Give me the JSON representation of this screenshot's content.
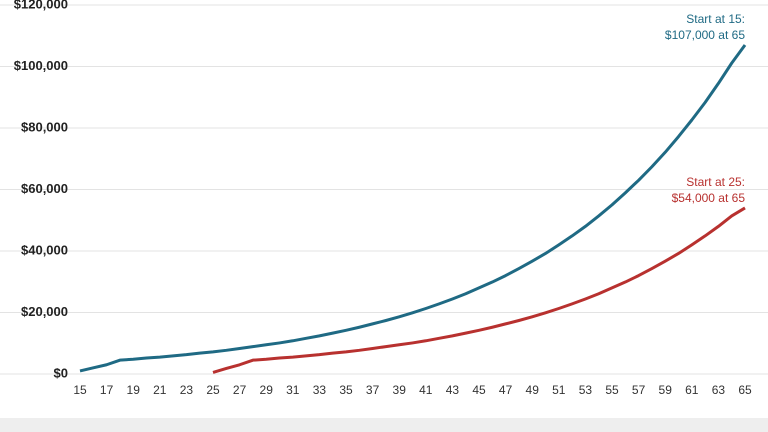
{
  "chart_data": {
    "type": "line",
    "x": [
      15,
      16,
      17,
      18,
      19,
      20,
      21,
      22,
      23,
      24,
      25,
      26,
      27,
      28,
      29,
      30,
      31,
      32,
      33,
      34,
      35,
      36,
      37,
      38,
      39,
      40,
      41,
      42,
      43,
      44,
      45,
      46,
      47,
      48,
      49,
      50,
      51,
      52,
      53,
      54,
      55,
      56,
      57,
      58,
      59,
      60,
      61,
      62,
      63,
      64,
      65
    ],
    "series": [
      {
        "color": "#1f6a84",
        "annotation": [
          "Start at 15:",
          "$107,000 at 65"
        ],
        "values": [
          1000,
          2000,
          3000,
          4500,
          4800,
          5200,
          5500,
          5900,
          6300,
          6800,
          7200,
          7700,
          8300,
          8900,
          9500,
          10100,
          10800,
          11600,
          12400,
          13300,
          14200,
          15200,
          16300,
          17400,
          18600,
          19900,
          21300,
          22800,
          24400,
          26100,
          28000,
          29900,
          32000,
          34300,
          36700,
          39200,
          42000,
          44900,
          48000,
          51400,
          55000,
          58900,
          63000,
          67400,
          72100,
          77200,
          82600,
          88300,
          94500,
          101100,
          107000
        ]
      },
      {
        "color": "#b8312f",
        "annotation": [
          "Start at 25:",
          "$54,000 at 65"
        ],
        "values": [
          null,
          null,
          null,
          null,
          null,
          null,
          null,
          null,
          null,
          null,
          500,
          1800,
          3000,
          4500,
          4800,
          5200,
          5500,
          5900,
          6300,
          6800,
          7200,
          7700,
          8300,
          8900,
          9500,
          10100,
          10800,
          11600,
          12400,
          13300,
          14200,
          15200,
          16300,
          17400,
          18600,
          19900,
          21300,
          22800,
          24400,
          26100,
          28000,
          29900,
          32000,
          34300,
          36700,
          39200,
          42000,
          44900,
          48000,
          51400,
          54000
        ]
      }
    ],
    "xlim": [
      15,
      65
    ],
    "xticks": [
      15,
      17,
      19,
      21,
      23,
      25,
      27,
      29,
      31,
      33,
      35,
      37,
      39,
      41,
      43,
      45,
      47,
      49,
      51,
      53,
      55,
      57,
      59,
      61,
      63,
      65
    ],
    "ylim": [
      0,
      120000
    ],
    "yticks": [
      {
        "value": 0,
        "label": "$0"
      },
      {
        "value": 20000,
        "label": "$20,000"
      },
      {
        "value": 40000,
        "label": "$40,000"
      },
      {
        "value": 60000,
        "label": "$60,000"
      },
      {
        "value": 80000,
        "label": "$80,000"
      },
      {
        "value": 100000,
        "label": "$100,000"
      },
      {
        "value": 120000,
        "label": "$120,000"
      }
    ],
    "grid": true
  }
}
